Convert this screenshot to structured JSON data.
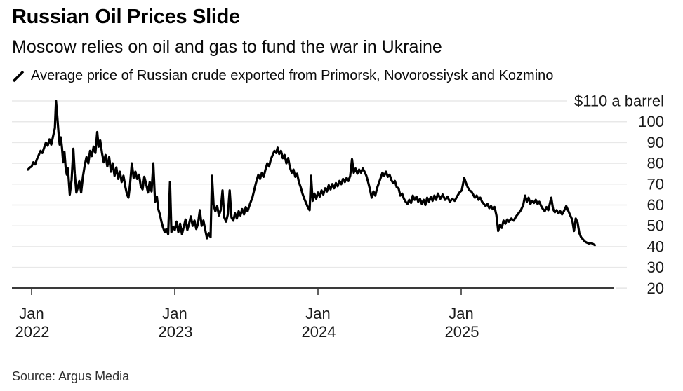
{
  "header": {
    "title": "Russian Oil Prices Slide",
    "subtitle": "Moscow relies on oil and gas to fund the war in Ukraine"
  },
  "legend": {
    "marker": "diagonal-line-marker",
    "label": "Average price of Russian crude exported from Primorsk, Novorossiysk and Kozmino"
  },
  "source": "Source: Argus Media",
  "colors": {
    "line": "#000000",
    "grid": "#e8e8e8",
    "axis": "#3a3a3a",
    "text": "#1a1a1a"
  },
  "chart_data": {
    "type": "line",
    "title": "Russian Oil Prices Slide",
    "series_name": "Average price of Russian crude exported from Primorsk, Novorossiysk and Kozmino",
    "unit": "USD per barrel",
    "ylim": [
      20,
      110
    ],
    "y_ticks": [
      110,
      100,
      90,
      80,
      70,
      60,
      50,
      40,
      30,
      20
    ],
    "y_top_label": "$110 a barrel",
    "grid": true,
    "legend_position": "top-left",
    "x_unit": "months since Jan 2022",
    "x_ticks": [
      {
        "month": "Jan",
        "year": "2022",
        "m": 0
      },
      {
        "month": "Jan",
        "year": "2023",
        "m": 12
      },
      {
        "month": "Jan",
        "year": "2024",
        "m": 24
      },
      {
        "month": "Jan",
        "year": "2025",
        "m": 36
      }
    ],
    "points": [
      [
        -0.3,
        77
      ],
      [
        -0.15,
        78
      ],
      [
        0,
        78.5
      ],
      [
        0.15,
        80.5
      ],
      [
        0.3,
        79.5
      ],
      [
        0.45,
        82
      ],
      [
        0.6,
        84
      ],
      [
        0.75,
        86
      ],
      [
        0.9,
        85
      ],
      [
        1.05,
        87.5
      ],
      [
        1.2,
        90
      ],
      [
        1.35,
        88.5
      ],
      [
        1.5,
        91.5
      ],
      [
        1.65,
        89
      ],
      [
        1.8,
        93
      ],
      [
        1.95,
        97
      ],
      [
        2.05,
        110
      ],
      [
        2.15,
        103
      ],
      [
        2.25,
        95
      ],
      [
        2.35,
        89
      ],
      [
        2.45,
        92.5
      ],
      [
        2.55,
        87.5
      ],
      [
        2.65,
        80.5
      ],
      [
        2.75,
        85.5
      ],
      [
        2.85,
        78
      ],
      [
        2.95,
        74.5
      ],
      [
        3.05,
        77.5
      ],
      [
        3.2,
        65
      ],
      [
        3.35,
        72
      ],
      [
        3.5,
        87
      ],
      [
        3.62,
        75
      ],
      [
        3.75,
        66
      ],
      [
        3.88,
        68.5
      ],
      [
        4.0,
        71.5
      ],
      [
        4.15,
        66
      ],
      [
        4.3,
        73.5
      ],
      [
        4.45,
        79
      ],
      [
        4.6,
        83
      ],
      [
        4.75,
        80
      ],
      [
        4.9,
        86
      ],
      [
        5.05,
        83.5
      ],
      [
        5.2,
        88
      ],
      [
        5.35,
        85
      ],
      [
        5.5,
        95
      ],
      [
        5.62,
        88
      ],
      [
        5.75,
        91
      ],
      [
        5.9,
        85
      ],
      [
        6.05,
        80.5
      ],
      [
        6.2,
        84
      ],
      [
        6.35,
        78.5
      ],
      [
        6.5,
        83
      ],
      [
        6.65,
        76
      ],
      [
        6.8,
        80
      ],
      [
        6.95,
        74
      ],
      [
        7.1,
        78
      ],
      [
        7.25,
        72.5
      ],
      [
        7.4,
        76
      ],
      [
        7.55,
        71
      ],
      [
        7.7,
        74
      ],
      [
        7.85,
        69
      ],
      [
        8.0,
        65
      ],
      [
        8.12,
        63.5
      ],
      [
        8.25,
        70
      ],
      [
        8.4,
        80
      ],
      [
        8.55,
        73
      ],
      [
        8.7,
        76
      ],
      [
        8.85,
        72.5
      ],
      [
        9.0,
        74.5
      ],
      [
        9.15,
        69
      ],
      [
        9.3,
        67.5
      ],
      [
        9.45,
        73.5
      ],
      [
        9.6,
        70
      ],
      [
        9.75,
        66
      ],
      [
        9.9,
        71
      ],
      [
        10.05,
        66.5
      ],
      [
        10.2,
        80
      ],
      [
        10.35,
        61.5
      ],
      [
        10.5,
        64
      ],
      [
        10.62,
        58
      ],
      [
        10.75,
        55.5
      ],
      [
        10.88,
        52
      ],
      [
        11.0,
        49.5
      ],
      [
        11.15,
        47
      ],
      [
        11.3,
        48.5
      ],
      [
        11.45,
        46
      ],
      [
        11.6,
        71
      ],
      [
        11.72,
        47
      ],
      [
        11.86,
        49.5
      ],
      [
        12.0,
        48
      ],
      [
        12.15,
        52
      ],
      [
        12.3,
        47
      ],
      [
        12.45,
        51
      ],
      [
        12.6,
        46
      ],
      [
        12.75,
        49.5
      ],
      [
        12.9,
        53
      ],
      [
        13.05,
        48
      ],
      [
        13.2,
        51
      ],
      [
        13.35,
        54.5
      ],
      [
        13.5,
        50
      ],
      [
        13.65,
        52.5
      ],
      [
        13.8,
        48.5
      ],
      [
        13.95,
        51
      ],
      [
        14.1,
        57.5
      ],
      [
        14.25,
        50
      ],
      [
        14.4,
        52.5
      ],
      [
        14.55,
        48
      ],
      [
        14.7,
        44
      ],
      [
        14.85,
        46.5
      ],
      [
        15.0,
        44.5
      ],
      [
        15.12,
        74
      ],
      [
        15.25,
        60
      ],
      [
        15.4,
        57
      ],
      [
        15.55,
        59.5
      ],
      [
        15.7,
        55
      ],
      [
        15.85,
        57.5
      ],
      [
        16.0,
        67
      ],
      [
        16.15,
        54
      ],
      [
        16.3,
        52
      ],
      [
        16.45,
        55.5
      ],
      [
        16.6,
        67
      ],
      [
        16.75,
        54
      ],
      [
        16.9,
        52.5
      ],
      [
        17.05,
        56
      ],
      [
        17.2,
        53.5
      ],
      [
        17.35,
        57
      ],
      [
        17.5,
        55
      ],
      [
        17.65,
        58
      ],
      [
        17.8,
        55.5
      ],
      [
        17.95,
        59
      ],
      [
        18.1,
        57
      ],
      [
        18.3,
        60.5
      ],
      [
        18.5,
        63.5
      ],
      [
        18.65,
        67
      ],
      [
        18.8,
        70.5
      ],
      [
        19.0,
        74.5
      ],
      [
        19.15,
        72.5
      ],
      [
        19.3,
        75.5
      ],
      [
        19.45,
        73.5
      ],
      [
        19.6,
        77
      ],
      [
        19.75,
        80
      ],
      [
        19.9,
        78.5
      ],
      [
        20.05,
        82
      ],
      [
        20.2,
        84
      ],
      [
        20.35,
        86
      ],
      [
        20.5,
        85
      ],
      [
        20.62,
        87.5
      ],
      [
        20.75,
        84.5
      ],
      [
        20.9,
        86
      ],
      [
        21.05,
        82.5
      ],
      [
        21.2,
        84
      ],
      [
        21.35,
        80
      ],
      [
        21.5,
        82.5
      ],
      [
        21.65,
        78
      ],
      [
        21.8,
        75.5
      ],
      [
        21.95,
        77
      ],
      [
        22.1,
        73.5
      ],
      [
        22.25,
        75
      ],
      [
        22.4,
        71
      ],
      [
        22.55,
        68.5
      ],
      [
        22.7,
        65.5
      ],
      [
        22.85,
        63
      ],
      [
        23.0,
        61
      ],
      [
        23.15,
        59
      ],
      [
        23.3,
        57.5
      ],
      [
        23.42,
        74
      ],
      [
        23.55,
        62
      ],
      [
        23.7,
        65.5
      ],
      [
        23.85,
        63
      ],
      [
        24.0,
        66
      ],
      [
        24.15,
        64
      ],
      [
        24.3,
        67
      ],
      [
        24.45,
        65
      ],
      [
        24.6,
        68
      ],
      [
        24.75,
        66.5
      ],
      [
        24.9,
        69.5
      ],
      [
        25.05,
        67.5
      ],
      [
        25.2,
        70
      ],
      [
        25.35,
        68
      ],
      [
        25.5,
        70.5
      ],
      [
        25.65,
        69
      ],
      [
        25.8,
        71.5
      ],
      [
        25.95,
        70
      ],
      [
        26.1,
        72.5
      ],
      [
        26.25,
        71
      ],
      [
        26.4,
        73
      ],
      [
        26.55,
        71.5
      ],
      [
        26.7,
        74
      ],
      [
        26.85,
        82
      ],
      [
        27.0,
        75.5
      ],
      [
        27.15,
        77.5
      ],
      [
        27.3,
        75
      ],
      [
        27.45,
        77
      ],
      [
        27.6,
        75.5
      ],
      [
        27.75,
        77.5
      ],
      [
        27.9,
        76
      ],
      [
        28.05,
        74
      ],
      [
        28.2,
        71
      ],
      [
        28.35,
        67.5
      ],
      [
        28.5,
        63.5
      ],
      [
        28.65,
        66.5
      ],
      [
        28.8,
        64.5
      ],
      [
        28.95,
        68
      ],
      [
        29.1,
        70.5
      ],
      [
        29.25,
        73
      ],
      [
        29.4,
        75.5
      ],
      [
        29.55,
        74
      ],
      [
        29.7,
        76
      ],
      [
        29.85,
        73.5
      ],
      [
        30.0,
        74.5
      ],
      [
        30.15,
        72
      ],
      [
        30.3,
        70.5
      ],
      [
        30.45,
        71.5
      ],
      [
        30.6,
        68.5
      ],
      [
        30.75,
        68
      ],
      [
        30.9,
        64.5
      ],
      [
        31.05,
        65.5
      ],
      [
        31.2,
        63
      ],
      [
        31.35,
        61.5
      ],
      [
        31.5,
        60.5
      ],
      [
        31.65,
        62.5
      ],
      [
        31.8,
        61
      ],
      [
        31.95,
        64.5
      ],
      [
        32.1,
        62.5
      ],
      [
        32.25,
        64
      ],
      [
        32.4,
        61.5
      ],
      [
        32.55,
        63
      ],
      [
        32.7,
        60.5
      ],
      [
        32.85,
        62.5
      ],
      [
        33.0,
        60
      ],
      [
        33.15,
        63.5
      ],
      [
        33.3,
        61.5
      ],
      [
        33.45,
        64
      ],
      [
        33.6,
        62
      ],
      [
        33.75,
        64.5
      ],
      [
        33.9,
        62.5
      ],
      [
        34.05,
        65.5
      ],
      [
        34.25,
        63
      ],
      [
        34.45,
        65
      ],
      [
        34.65,
        62.5
      ],
      [
        34.85,
        64
      ],
      [
        35.05,
        61.5
      ],
      [
        35.25,
        63
      ],
      [
        35.45,
        62
      ],
      [
        35.65,
        64
      ],
      [
        35.85,
        66
      ],
      [
        36.05,
        67
      ],
      [
        36.25,
        73
      ],
      [
        36.4,
        70.5
      ],
      [
        36.55,
        68.5
      ],
      [
        36.7,
        67
      ],
      [
        36.85,
        66.5
      ],
      [
        37.0,
        65
      ],
      [
        37.15,
        63.5
      ],
      [
        37.3,
        64.5
      ],
      [
        37.45,
        62.5
      ],
      [
        37.6,
        63.5
      ],
      [
        37.75,
        61.5
      ],
      [
        37.9,
        60.5
      ],
      [
        38.05,
        59.5
      ],
      [
        38.2,
        60.5
      ],
      [
        38.35,
        58.5
      ],
      [
        38.5,
        59.5
      ],
      [
        38.65,
        58
      ],
      [
        38.8,
        59
      ],
      [
        38.95,
        55
      ],
      [
        39.1,
        47.5
      ],
      [
        39.25,
        50.5
      ],
      [
        39.4,
        49
      ],
      [
        39.55,
        52.5
      ],
      [
        39.7,
        51
      ],
      [
        39.85,
        53
      ],
      [
        40.0,
        52
      ],
      [
        40.2,
        53.5
      ],
      [
        40.4,
        52.5
      ],
      [
        40.6,
        54.5
      ],
      [
        40.8,
        56
      ],
      [
        41.0,
        57.5
      ],
      [
        41.2,
        60
      ],
      [
        41.35,
        64.5
      ],
      [
        41.5,
        61.5
      ],
      [
        41.65,
        63.5
      ],
      [
        41.8,
        60.5
      ],
      [
        41.95,
        62
      ],
      [
        42.1,
        61
      ],
      [
        42.25,
        62.5
      ],
      [
        42.4,
        60.5
      ],
      [
        42.55,
        61.5
      ],
      [
        42.7,
        59.5
      ],
      [
        42.85,
        58
      ],
      [
        43.0,
        57
      ],
      [
        43.15,
        59
      ],
      [
        43.3,
        57.5
      ],
      [
        43.55,
        63.5
      ],
      [
        43.7,
        58
      ],
      [
        43.85,
        56.5
      ],
      [
        44.0,
        57.5
      ],
      [
        44.15,
        56
      ],
      [
        44.3,
        57
      ],
      [
        44.45,
        55.5
      ],
      [
        44.6,
        57
      ],
      [
        44.8,
        59.5
      ],
      [
        44.95,
        57.5
      ],
      [
        45.1,
        55.5
      ],
      [
        45.3,
        53
      ],
      [
        45.45,
        47.5
      ],
      [
        45.6,
        53.5
      ],
      [
        45.75,
        51.5
      ],
      [
        45.9,
        46.5
      ],
      [
        46.05,
        44.5
      ],
      [
        46.2,
        43.5
      ],
      [
        46.35,
        42.5
      ],
      [
        46.5,
        42
      ],
      [
        46.7,
        41.5
      ],
      [
        46.9,
        41.8
      ],
      [
        47.05,
        41.2
      ],
      [
        47.2,
        40.7
      ]
    ]
  }
}
